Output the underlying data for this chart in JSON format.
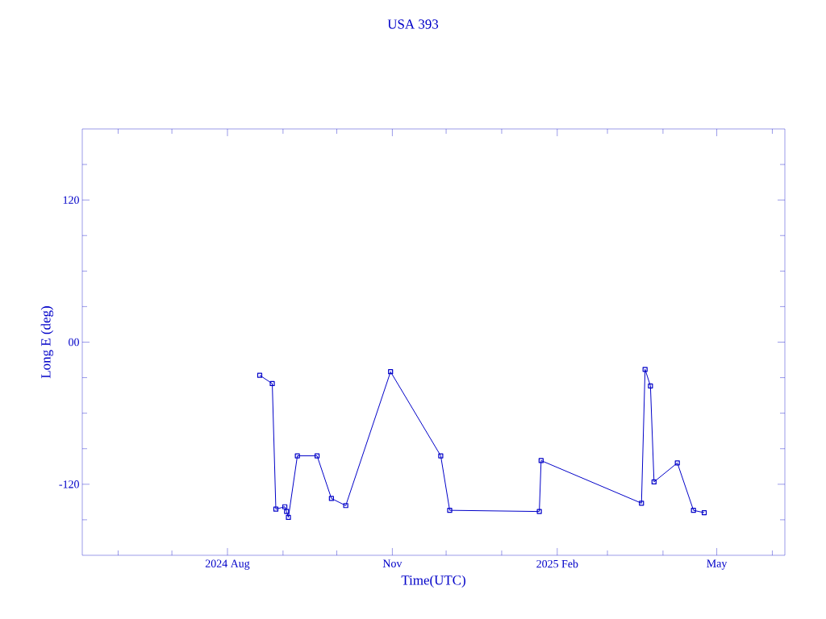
{
  "chart_data": {
    "type": "line",
    "title": "USA 393",
    "xlabel": "Time(UTC)",
    "ylabel": "Long E (deg)",
    "x": [
      "2024-08-19",
      "2024-08-26",
      "2024-08-28",
      "2024-09-02",
      "2024-09-03",
      "2024-09-04",
      "2024-09-09",
      "2024-09-20",
      "2024-09-28",
      "2024-10-06",
      "2024-10-31",
      "2024-11-28",
      "2024-12-03",
      "2025-01-22",
      "2025-01-23",
      "2025-03-20",
      "2025-03-22",
      "2025-03-25",
      "2025-03-27",
      "2025-04-09",
      "2025-04-18",
      "2025-04-24"
    ],
    "series": [
      {
        "color": "#0000c8",
        "values": [
          -28,
          -35,
          -141,
          -139,
          -143,
          -148,
          -96,
          -96,
          -132,
          -138,
          -25,
          -96,
          -142,
          -143,
          -100,
          -136,
          -23,
          -37,
          -118,
          -102,
          -142,
          -144
        ]
      }
    ],
    "marker": "square",
    "line_style": "solid",
    "grid": false,
    "xlim": [
      "2024-05-12",
      "2025-06-08"
    ],
    "ylim": [
      -180,
      180
    ],
    "xticks": [
      {
        "value": "2024-06-01",
        "label": null
      },
      {
        "value": "2024-07-01",
        "label": null
      },
      {
        "value": "2024-08-01",
        "label": "2024 Aug"
      },
      {
        "value": "2024-09-01",
        "label": null
      },
      {
        "value": "2024-10-01",
        "label": null
      },
      {
        "value": "2024-11-01",
        "label": "Nov"
      },
      {
        "value": "2024-12-01",
        "label": null
      },
      {
        "value": "2025-01-01",
        "label": null
      },
      {
        "value": "2025-02-01",
        "label": "2025 Feb"
      },
      {
        "value": "2025-03-01",
        "label": null
      },
      {
        "value": "2025-04-01",
        "label": null
      },
      {
        "value": "2025-05-01",
        "label": "May"
      },
      {
        "value": "2025-06-01",
        "label": null
      }
    ],
    "yticks": [
      {
        "value": -150,
        "label": null
      },
      {
        "value": -120,
        "label": "-120"
      },
      {
        "value": -90,
        "label": null
      },
      {
        "value": -60,
        "label": null
      },
      {
        "value": -30,
        "label": null
      },
      {
        "value": 0,
        "label": "00"
      },
      {
        "value": 30,
        "label": null
      },
      {
        "value": 60,
        "label": null
      },
      {
        "value": 90,
        "label": null
      },
      {
        "value": 120,
        "label": "120"
      },
      {
        "value": 150,
        "label": null
      }
    ]
  }
}
